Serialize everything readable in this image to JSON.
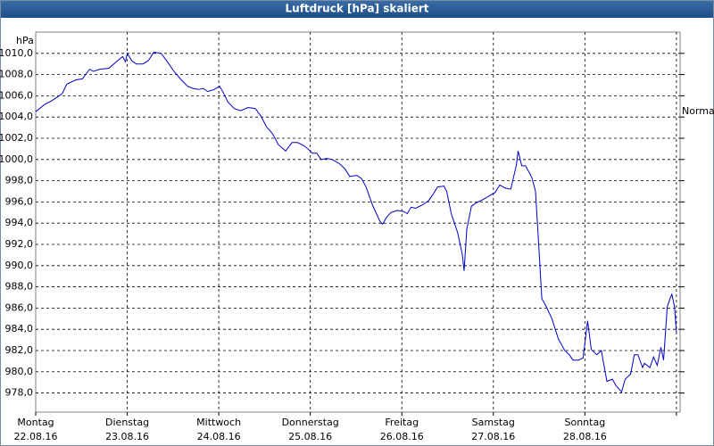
{
  "chart_data": {
    "type": "line",
    "title": "Luftdruck [hPa] skaliert",
    "y_unit": "hPa",
    "annotations": [
      {
        "text": "Normal",
        "y": 1004.5
      }
    ],
    "xlim": [
      0,
      7.04
    ],
    "xticks": [
      {
        "value": 0,
        "label": "Montag",
        "date": "22.08.16"
      },
      {
        "value": 1,
        "label": "Dienstag",
        "date": "23.08.16"
      },
      {
        "value": 2,
        "label": "Mittwoch",
        "date": "24.08.16"
      },
      {
        "value": 3,
        "label": "Donnerstag",
        "date": "25.08.16"
      },
      {
        "value": 4,
        "label": "Freitag",
        "date": "26.08.16"
      },
      {
        "value": 5,
        "label": "Samstag",
        "date": "27.08.16"
      },
      {
        "value": 6,
        "label": "Sonntag",
        "date": "28.08.16"
      },
      {
        "value": 7,
        "label": null,
        "date": null
      }
    ],
    "ylim": [
      976.2,
      1012
    ],
    "yticks": [
      {
        "value": 978,
        "label": "978,0"
      },
      {
        "value": 980,
        "label": "980,0"
      },
      {
        "value": 982,
        "label": "982,0"
      },
      {
        "value": 984,
        "label": "984,0"
      },
      {
        "value": 986,
        "label": "986,0"
      },
      {
        "value": 988,
        "label": "988,0"
      },
      {
        "value": 990,
        "label": "990,0"
      },
      {
        "value": 992,
        "label": "992,0"
      },
      {
        "value": 994,
        "label": "994,0"
      },
      {
        "value": 996,
        "label": "996,0"
      },
      {
        "value": 998,
        "label": "998,0"
      },
      {
        "value": 1000,
        "label": "1000,0"
      },
      {
        "value": 1002,
        "label": "1002,0"
      },
      {
        "value": 1004,
        "label": "1004,0"
      },
      {
        "value": 1006,
        "label": "1006,0"
      },
      {
        "value": 1008,
        "label": "1008,0"
      },
      {
        "value": 1010,
        "label": "1010,0"
      }
    ],
    "grid": true,
    "series": [
      {
        "color": "#0000cc",
        "x": [
          0,
          0.1,
          0.17,
          0.24,
          0.29,
          0.34,
          0.44,
          0.51,
          0.59,
          0.63,
          0.7,
          0.8,
          0.88,
          0.95,
          0.98,
          1.0,
          1.05,
          1.1,
          1.17,
          1.23,
          1.29,
          1.37,
          1.43,
          1.51,
          1.59,
          1.66,
          1.72,
          1.78,
          1.83,
          1.88,
          1.95,
          2.01,
          2.05,
          2.1,
          2.17,
          2.24,
          2.32,
          2.4,
          2.46,
          2.52,
          2.59,
          2.65,
          2.73,
          2.8,
          2.86,
          2.93,
          3.0,
          3.02,
          3.07,
          3.12,
          3.18,
          3.24,
          3.32,
          3.38,
          3.43,
          3.51,
          3.56,
          3.61,
          3.68,
          3.76,
          3.79,
          3.83,
          3.88,
          3.95,
          4.02,
          4.06,
          4.1,
          4.15,
          4.22,
          4.29,
          4.34,
          4.39,
          4.46,
          4.49,
          4.54,
          4.61,
          4.66,
          4.68,
          4.71,
          4.76,
          4.81,
          4.88,
          4.96,
          5.02,
          5.07,
          5.13,
          5.19,
          5.22,
          5.25,
          5.27,
          5.31,
          5.35,
          5.39,
          5.42,
          5.46,
          5.49,
          5.53,
          5.58,
          5.64,
          5.71,
          5.78,
          5.83,
          5.87,
          5.93,
          5.98,
          6.03,
          6.07,
          6.13,
          6.18,
          6.2,
          6.24,
          6.3,
          6.34,
          6.4,
          6.44,
          6.5,
          6.54,
          6.58,
          6.63,
          6.65,
          6.71,
          6.75,
          6.79,
          6.83,
          6.86,
          6.9,
          6.93,
          6.95,
          6.98,
          7.0
        ],
        "values": [
          1004.5,
          1005.2,
          1005.5,
          1005.9,
          1006.2,
          1007.1,
          1007.5,
          1007.6,
          1008.5,
          1008.3,
          1008.5,
          1008.6,
          1009.2,
          1009.7,
          1009.2,
          1010.0,
          1009.3,
          1009.0,
          1009.0,
          1009.3,
          1010.1,
          1010.0,
          1009.3,
          1008.3,
          1007.5,
          1006.9,
          1006.7,
          1006.6,
          1006.7,
          1006.4,
          1006.6,
          1006.9,
          1006.3,
          1005.4,
          1004.8,
          1004.6,
          1004.9,
          1004.8,
          1004.1,
          1003.1,
          1002.4,
          1001.4,
          1000.8,
          1001.6,
          1001.6,
          1001.3,
          1000.8,
          1000.6,
          1000.6,
          1000.0,
          1000.1,
          1000.0,
          999.6,
          999.1,
          998.4,
          998.5,
          998.2,
          997.4,
          995.7,
          994.2,
          993.9,
          994.5,
          995.0,
          995.2,
          995.1,
          994.9,
          995.5,
          995.4,
          995.7,
          996.1,
          996.7,
          997.4,
          997.5,
          997.0,
          994.9,
          993.1,
          991.1,
          989.5,
          993.4,
          995.6,
          995.9,
          996.2,
          996.6,
          996.9,
          997.6,
          997.3,
          997.2,
          998.3,
          999.4,
          1000.8,
          999.4,
          999.4,
          998.8,
          998.3,
          997.0,
          992.8,
          986.9,
          986.1,
          985.0,
          983.1,
          982.0,
          981.6,
          981.1,
          981.1,
          981.3,
          984.8,
          982.1,
          981.6,
          982.0,
          981.0,
          979.1,
          979.3,
          978.7,
          978.1,
          979.3,
          979.8,
          981.6,
          981.6,
          980.4,
          980.8,
          980.4,
          981.4,
          980.6,
          982.3,
          981.1,
          986.1,
          986.9,
          987.3,
          986.1,
          983.7
        ]
      }
    ]
  }
}
